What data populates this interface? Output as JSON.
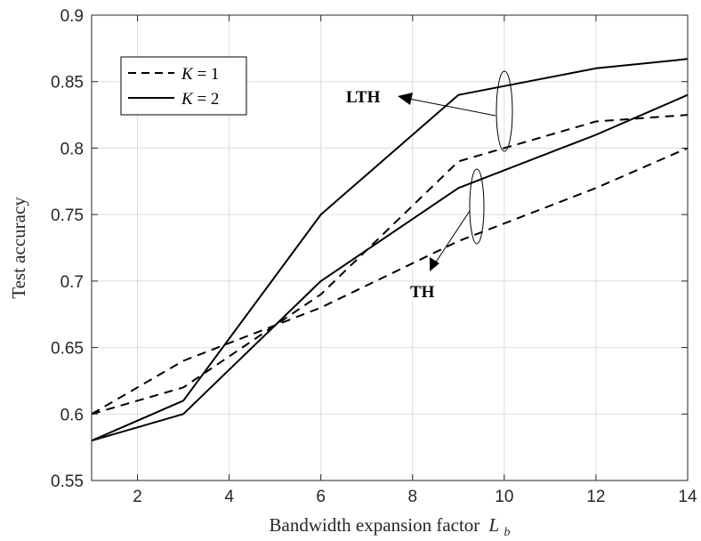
{
  "chart_data": {
    "type": "line",
    "title": "",
    "xlabel": "Bandwidth expansion factor",
    "xlabel_sub": "b",
    "xlabel_var": "L",
    "ylabel": "Test accuracy",
    "xlim": [
      1,
      14
    ],
    "ylim": [
      0.55,
      0.9
    ],
    "xticks": [
      2,
      4,
      6,
      8,
      10,
      12,
      14
    ],
    "xtick_labels": [
      "2",
      "4",
      "6",
      "8",
      "10",
      "12",
      "14"
    ],
    "yticks": [
      0.55,
      0.6,
      0.65,
      0.7,
      0.75,
      0.8,
      0.85,
      0.9
    ],
    "ytick_labels": [
      "0.55",
      "0.6",
      "0.65",
      "0.7",
      "0.75",
      "0.8",
      "0.85",
      "0.9"
    ],
    "grid": true,
    "legend_position": "top-left",
    "legend": [
      {
        "var": "K",
        "eq": " = 1",
        "style": "dashed"
      },
      {
        "var": "K",
        "eq": " = 2",
        "style": "solid"
      }
    ],
    "series": [
      {
        "group": "LTH",
        "style": "dashed",
        "x": [
          1,
          3,
          6,
          9,
          12,
          14
        ],
        "values": [
          0.6,
          0.62,
          0.69,
          0.79,
          0.82,
          0.825
        ]
      },
      {
        "group": "LTH",
        "style": "solid",
        "x": [
          1,
          3,
          6,
          9,
          12,
          14
        ],
        "values": [
          0.58,
          0.61,
          0.75,
          0.84,
          0.86,
          0.867
        ]
      },
      {
        "group": "TH",
        "style": "dashed",
        "x": [
          1,
          3,
          6,
          9,
          12,
          14
        ],
        "values": [
          0.6,
          0.64,
          0.68,
          0.73,
          0.77,
          0.8
        ]
      },
      {
        "group": "TH",
        "style": "solid",
        "x": [
          1,
          3,
          6,
          9,
          12,
          14
        ],
        "values": [
          0.58,
          0.6,
          0.7,
          0.77,
          0.81,
          0.84
        ]
      }
    ],
    "annotations": [
      {
        "text": "LTH"
      },
      {
        "text": "TH"
      }
    ],
    "colors": {
      "line": "#000000",
      "grid": "#dcdcdc",
      "axis": "#262626"
    }
  }
}
